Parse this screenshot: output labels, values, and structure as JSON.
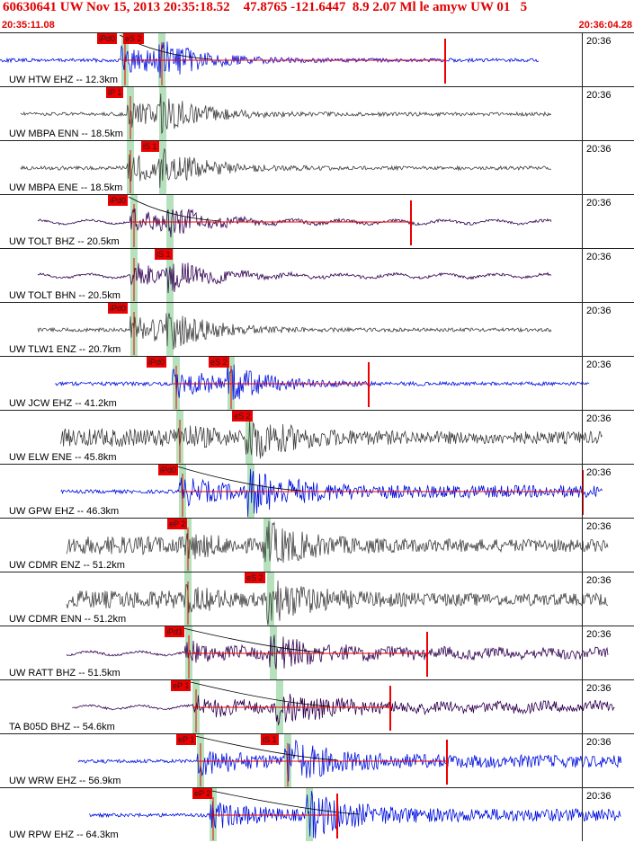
{
  "header": {
    "title": "60630641 UW Nov 15, 2013 20:35:18.52    47.8765 -121.6447  8.9 2.07 Ml le amyw UW 01   5",
    "time_left": "20:35:11.08",
    "time_right": "20:36:04.28"
  },
  "colors": {
    "pick": "#ee0000",
    "band": "#a8ddb0",
    "blue_trace": "#0010e0",
    "gray_trace": "#404040",
    "purple_trace": "#300050",
    "header_text": "#e00000"
  },
  "panels": [
    {
      "label": "UW HTW EHZ -- 12.3km",
      "time": "20:36",
      "color": "blue",
      "trace_start": 0.0,
      "trace_end": 0.85,
      "picks": [
        {
          "label": "iPd0"
        },
        {
          "label": "eS 2"
        }
      ]
    },
    {
      "label": "UW MBPA ENN -- 18.5km",
      "time": "20:36",
      "color": "gray",
      "trace_start": 0.02,
      "trace_end": 0.87,
      "picks": [
        {
          "label": "iP 1"
        }
      ]
    },
    {
      "label": "UW MBPA ENE -- 18.5km",
      "time": "20:36",
      "color": "gray",
      "trace_start": 0.02,
      "trace_end": 0.87,
      "picks": [
        {
          "label": "iS 1"
        }
      ]
    },
    {
      "label": "UW TOLT BHZ -- 20.5km",
      "time": "20:36",
      "color": "purple",
      "trace_start": 0.05,
      "trace_end": 0.87,
      "picks": [
        {
          "label": "iPd0"
        }
      ]
    },
    {
      "label": "UW TOLT BHN -- 20.5km",
      "time": "20:36",
      "color": "purple",
      "trace_start": 0.05,
      "trace_end": 0.87,
      "picks": [
        {
          "label": "iS 1"
        }
      ]
    },
    {
      "label": "UW TLW1 ENZ -- 20.7km",
      "time": "20:36",
      "color": "gray",
      "trace_start": 0.05,
      "trace_end": 0.87,
      "picks": [
        {
          "label": "iPd0"
        }
      ]
    },
    {
      "label": "UW JCW EHZ -- 41.2km",
      "time": "20:36",
      "color": "blue",
      "trace_start": 0.08,
      "trace_end": 0.93,
      "picks": [
        {
          "label": "iPd0"
        },
        {
          "label": "eS 2"
        }
      ]
    },
    {
      "label": "UW ELW ENE -- 45.8km",
      "time": "20:36",
      "color": "gray",
      "trace_start": 0.09,
      "trace_end": 0.95,
      "picks": [
        {
          "label": "eS 2"
        }
      ]
    },
    {
      "label": "UW GPW EHZ -- 46.3km",
      "time": "20:36",
      "color": "blue",
      "trace_start": 0.09,
      "trace_end": 0.95,
      "picks": [
        {
          "label": "iPd0"
        }
      ]
    },
    {
      "label": "UW CDMR ENZ -- 51.2km",
      "time": "20:36",
      "color": "gray",
      "trace_start": 0.1,
      "trace_end": 0.96,
      "picks": [
        {
          "label": "eP 2"
        }
      ]
    },
    {
      "label": "UW CDMR ENN -- 51.2km",
      "time": "20:36",
      "color": "gray",
      "trace_start": 0.1,
      "trace_end": 0.96,
      "picks": [
        {
          "label": "eS 2"
        }
      ]
    },
    {
      "label": "UW RATT BHZ -- 51.5km",
      "time": "20:36",
      "color": "purple",
      "trace_start": 0.1,
      "trace_end": 0.96,
      "picks": [
        {
          "label": "iPd1"
        }
      ]
    },
    {
      "label": "TA B05D BHZ -- 54.6km",
      "time": "20:36",
      "color": "purple",
      "trace_start": 0.11,
      "trace_end": 0.97,
      "picks": [
        {
          "label": "eP 1"
        }
      ]
    },
    {
      "label": "UW WRW EHZ -- 56.9km",
      "time": "20:36",
      "color": "blue",
      "trace_start": 0.12,
      "trace_end": 0.98,
      "picks": [
        {
          "label": "eP 1"
        },
        {
          "label": "iS 1"
        }
      ]
    },
    {
      "label": "UW RPW EHZ -- 64.3km",
      "time": "20:36",
      "color": "blue",
      "trace_start": 0.14,
      "trace_end": 0.98,
      "picks": [
        {
          "label": "eP 2"
        }
      ]
    }
  ]
}
